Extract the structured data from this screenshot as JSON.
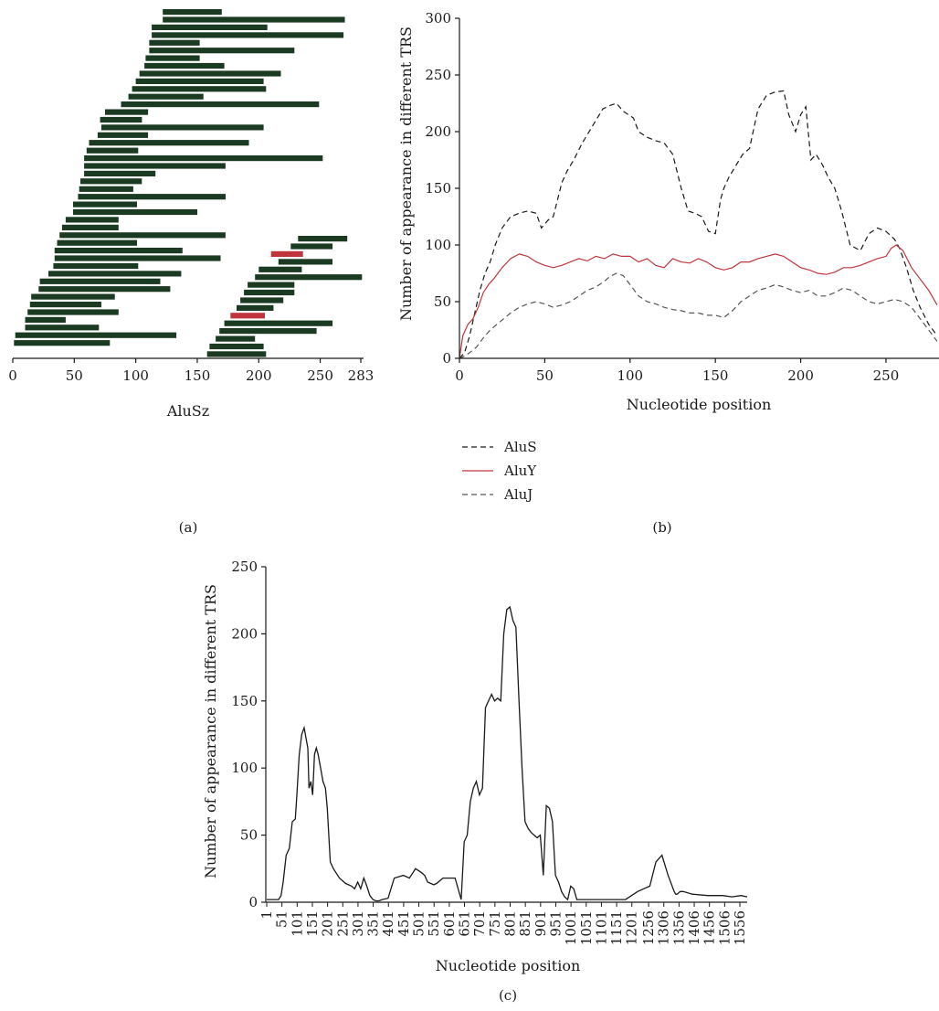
{
  "figure": {
    "panel_labels": [
      "(a)",
      "(b)",
      "(c)"
    ]
  },
  "colors": {
    "bar": "#1b3a22",
    "bar_highlight": "#c0353c",
    "aluS": "#1a1a1a",
    "aluY": "#c0353c",
    "aluJ": "#555555",
    "axis": "#1a1a1a"
  },
  "chart_data": [
    {
      "type": "bar",
      "panel": "(a)",
      "xlabel": "AluSz",
      "ylabel": "",
      "xlim": [
        0,
        283
      ],
      "x_ticks": [
        "0",
        "50",
        "100",
        "150",
        "200",
        "250",
        "283"
      ],
      "grid": false,
      "segments": [
        {
          "start": 122,
          "end": 170,
          "color": "dark"
        },
        {
          "start": 122,
          "end": 270,
          "color": "dark"
        },
        {
          "start": 113,
          "end": 207,
          "color": "dark"
        },
        {
          "start": 113,
          "end": 269,
          "color": "dark"
        },
        {
          "start": 111,
          "end": 152,
          "color": "dark"
        },
        {
          "start": 111,
          "end": 229,
          "color": "dark"
        },
        {
          "start": 108,
          "end": 152,
          "color": "dark"
        },
        {
          "start": 107,
          "end": 172,
          "color": "dark"
        },
        {
          "start": 103,
          "end": 218,
          "color": "dark"
        },
        {
          "start": 100,
          "end": 204,
          "color": "dark"
        },
        {
          "start": 97,
          "end": 206,
          "color": "dark"
        },
        {
          "start": 94,
          "end": 155,
          "color": "dark"
        },
        {
          "start": 88,
          "end": 249,
          "color": "dark"
        },
        {
          "start": 75,
          "end": 110,
          "color": "dark"
        },
        {
          "start": 71,
          "end": 105,
          "color": "dark"
        },
        {
          "start": 72,
          "end": 204,
          "color": "dark"
        },
        {
          "start": 69,
          "end": 110,
          "color": "dark"
        },
        {
          "start": 62,
          "end": 192,
          "color": "dark"
        },
        {
          "start": 60,
          "end": 102,
          "color": "dark"
        },
        {
          "start": 58,
          "end": 252,
          "color": "dark"
        },
        {
          "start": 58,
          "end": 173,
          "color": "dark"
        },
        {
          "start": 58,
          "end": 116,
          "color": "dark"
        },
        {
          "start": 55,
          "end": 105,
          "color": "dark"
        },
        {
          "start": 54,
          "end": 98,
          "color": "dark"
        },
        {
          "start": 53,
          "end": 173,
          "color": "dark"
        },
        {
          "start": 49,
          "end": 101,
          "color": "dark"
        },
        {
          "start": 49,
          "end": 150,
          "color": "dark"
        },
        {
          "start": 43,
          "end": 86,
          "color": "dark"
        },
        {
          "start": 40,
          "end": 86,
          "color": "dark"
        },
        {
          "start": 38,
          "end": 173,
          "color": "dark"
        },
        {
          "start": 36,
          "end": 101,
          "color": "dark"
        },
        {
          "start": 34,
          "end": 138,
          "color": "dark"
        },
        {
          "start": 34,
          "end": 169,
          "color": "dark"
        },
        {
          "start": 33,
          "end": 102,
          "color": "dark"
        },
        {
          "start": 29,
          "end": 137,
          "color": "dark"
        },
        {
          "start": 22,
          "end": 120,
          "color": "dark"
        },
        {
          "start": 21,
          "end": 128,
          "color": "dark"
        },
        {
          "start": 15,
          "end": 83,
          "color": "dark"
        },
        {
          "start": 14,
          "end": 72,
          "color": "dark"
        },
        {
          "start": 12,
          "end": 86,
          "color": "dark"
        },
        {
          "start": 10,
          "end": 43,
          "color": "dark"
        },
        {
          "start": 10,
          "end": 70,
          "color": "dark"
        },
        {
          "start": 2,
          "end": 133,
          "color": "dark"
        },
        {
          "start": 1,
          "end": 79,
          "color": "dark"
        },
        {
          "start": 232,
          "end": 272,
          "color": "dark"
        },
        {
          "start": 226,
          "end": 260,
          "color": "dark"
        },
        {
          "start": 210,
          "end": 236,
          "color": "red"
        },
        {
          "start": 216,
          "end": 260,
          "color": "dark"
        },
        {
          "start": 200,
          "end": 235,
          "color": "dark"
        },
        {
          "start": 197,
          "end": 284,
          "color": "dark"
        },
        {
          "start": 191,
          "end": 229,
          "color": "dark"
        },
        {
          "start": 188,
          "end": 229,
          "color": "dark"
        },
        {
          "start": 185,
          "end": 220,
          "color": "dark"
        },
        {
          "start": 182,
          "end": 212,
          "color": "dark"
        },
        {
          "start": 177,
          "end": 205,
          "color": "red"
        },
        {
          "start": 172,
          "end": 260,
          "color": "dark"
        },
        {
          "start": 168,
          "end": 247,
          "color": "dark"
        },
        {
          "start": 165,
          "end": 197,
          "color": "dark"
        },
        {
          "start": 160,
          "end": 204,
          "color": "dark"
        },
        {
          "start": 158,
          "end": 206,
          "color": "dark"
        }
      ]
    },
    {
      "type": "line",
      "panel": "(b)",
      "xlabel": "Nucleotide position",
      "ylabel": "Number of appearance in different TRS",
      "xlim": [
        0,
        280
      ],
      "ylim": [
        0,
        300
      ],
      "x_ticks": [
        "0",
        "50",
        "100",
        "150",
        "200",
        "250"
      ],
      "y_ticks": [
        "0",
        "50",
        "100",
        "150",
        "200",
        "250",
        "300"
      ],
      "grid": false,
      "legend_position": "bottom",
      "series": [
        {
          "name": "AluS",
          "style": "dashed",
          "x": [
            0,
            3,
            6,
            9,
            12,
            15,
            18,
            21,
            25,
            30,
            35,
            40,
            45,
            48,
            52,
            55,
            60,
            63,
            67,
            72,
            78,
            84,
            88,
            92,
            96,
            102,
            105,
            110,
            115,
            120,
            125,
            130,
            134,
            138,
            142,
            146,
            150,
            153,
            155,
            158,
            162,
            166,
            170,
            175,
            180,
            185,
            190,
            193,
            197,
            200,
            203,
            206,
            209,
            213,
            216,
            220,
            224,
            229,
            235,
            240,
            245,
            250,
            255,
            258,
            262,
            266,
            270,
            275,
            280
          ],
          "y": [
            0,
            5,
            20,
            40,
            60,
            75,
            85,
            100,
            115,
            125,
            128,
            130,
            128,
            115,
            122,
            125,
            155,
            165,
            175,
            190,
            205,
            220,
            223,
            225,
            218,
            212,
            200,
            195,
            192,
            190,
            180,
            150,
            130,
            128,
            125,
            112,
            110,
            140,
            150,
            160,
            170,
            180,
            185,
            220,
            232,
            235,
            236,
            215,
            200,
            215,
            222,
            175,
            180,
            170,
            160,
            150,
            130,
            100,
            95,
            110,
            115,
            112,
            105,
            97,
            80,
            60,
            45,
            30,
            20
          ]
        },
        {
          "name": "AluY",
          "style": "solid",
          "x": [
            0,
            2,
            5,
            8,
            11,
            14,
            17,
            20,
            25,
            30,
            35,
            40,
            45,
            50,
            55,
            60,
            65,
            70,
            75,
            80,
            85,
            90,
            95,
            100,
            105,
            110,
            115,
            120,
            125,
            130,
            135,
            140,
            145,
            150,
            155,
            160,
            165,
            170,
            175,
            180,
            185,
            190,
            195,
            200,
            205,
            210,
            215,
            220,
            225,
            230,
            235,
            240,
            245,
            250,
            253,
            256,
            260,
            265,
            270,
            275,
            280
          ],
          "y": [
            0,
            20,
            30,
            35,
            45,
            58,
            65,
            70,
            80,
            88,
            92,
            90,
            85,
            82,
            80,
            82,
            85,
            88,
            86,
            90,
            88,
            92,
            90,
            90,
            85,
            88,
            82,
            80,
            88,
            85,
            84,
            88,
            85,
            80,
            78,
            80,
            85,
            85,
            88,
            90,
            92,
            90,
            85,
            80,
            78,
            75,
            74,
            76,
            80,
            80,
            82,
            85,
            88,
            90,
            97,
            100,
            95,
            80,
            70,
            60,
            47
          ]
        },
        {
          "name": "AluJ",
          "style": "dashed",
          "x": [
            0,
            3,
            6,
            10,
            14,
            18,
            22,
            26,
            30,
            35,
            40,
            45,
            50,
            55,
            60,
            65,
            70,
            75,
            80,
            85,
            88,
            92,
            96,
            100,
            105,
            110,
            115,
            120,
            125,
            130,
            135,
            140,
            145,
            150,
            155,
            160,
            165,
            170,
            175,
            180,
            185,
            190,
            195,
            200,
            205,
            210,
            215,
            220,
            225,
            230,
            235,
            240,
            245,
            250,
            255,
            260,
            265,
            270,
            275,
            280
          ],
          "y": [
            0,
            2,
            5,
            10,
            18,
            25,
            30,
            35,
            40,
            45,
            48,
            50,
            48,
            45,
            47,
            50,
            55,
            60,
            63,
            68,
            72,
            75,
            73,
            65,
            55,
            50,
            48,
            45,
            43,
            42,
            40,
            40,
            38,
            38,
            36,
            42,
            50,
            55,
            60,
            62,
            65,
            63,
            60,
            58,
            60,
            55,
            55,
            58,
            62,
            60,
            55,
            50,
            48,
            50,
            52,
            50,
            45,
            35,
            25,
            15
          ]
        }
      ]
    },
    {
      "type": "line",
      "panel": "(c)",
      "xlabel": "Nucleotide position",
      "ylabel": "Number of appearance in different TRS",
      "xlim": [
        1,
        1580
      ],
      "ylim": [
        0,
        250
      ],
      "x_ticks": [
        "1",
        "51",
        "101",
        "151",
        "201",
        "251",
        "301",
        "351",
        "401",
        "451",
        "501",
        "551",
        "601",
        "651",
        "701",
        "751",
        "801",
        "851",
        "901",
        "951",
        "1001",
        "1051",
        "1101",
        "1151",
        "1201",
        "1256",
        "1306",
        "1356",
        "1406",
        "1456",
        "1506",
        "1556"
      ],
      "y_ticks": [
        "0",
        "50",
        "100",
        "150",
        "200",
        "250"
      ],
      "grid": false,
      "series": [
        {
          "name": "",
          "style": "solid",
          "x": [
            1,
            40,
            48,
            55,
            65,
            75,
            85,
            95,
            100,
            108,
            116,
            124,
            132,
            136,
            140,
            146,
            152,
            158,
            164,
            170,
            178,
            186,
            194,
            200,
            210,
            220,
            240,
            260,
            280,
            290,
            300,
            310,
            320,
            330,
            340,
            350,
            360,
            370,
            380,
            400,
            420,
            450,
            470,
            490,
            510,
            520,
            530,
            550,
            560,
            580,
            590,
            600,
            620,
            640,
            650,
            660,
            670,
            680,
            690,
            700,
            710,
            720,
            730,
            740,
            750,
            760,
            770,
            780,
            790,
            800,
            810,
            820,
            830,
            840,
            850,
            860,
            870,
            880,
            890,
            900,
            910,
            920,
            930,
            940,
            950,
            960,
            970,
            980,
            990,
            1000,
            1010,
            1020,
            1040,
            1060,
            1080,
            1100,
            1120,
            1140,
            1160,
            1180,
            1200,
            1220,
            1240,
            1260,
            1280,
            1300,
            1320,
            1340,
            1345,
            1350,
            1355,
            1360,
            1370,
            1400,
            1450,
            1480,
            1500,
            1530,
            1560,
            1580
          ],
          "y": [
            2,
            2,
            5,
            15,
            35,
            40,
            60,
            62,
            80,
            110,
            125,
            130,
            120,
            115,
            85,
            90,
            80,
            110,
            115,
            110,
            100,
            90,
            85,
            70,
            30,
            25,
            18,
            14,
            12,
            10,
            15,
            10,
            18,
            12,
            5,
            2,
            1,
            1,
            2,
            3,
            18,
            20,
            18,
            25,
            22,
            20,
            15,
            13,
            14,
            18,
            18,
            18,
            18,
            2,
            45,
            50,
            75,
            85,
            90,
            80,
            85,
            145,
            150,
            155,
            150,
            152,
            150,
            200,
            218,
            220,
            210,
            205,
            150,
            100,
            60,
            55,
            52,
            50,
            48,
            50,
            20,
            72,
            70,
            60,
            20,
            15,
            8,
            4,
            2,
            12,
            10,
            2,
            2,
            2,
            2,
            2,
            2,
            2,
            2,
            2,
            5,
            8,
            10,
            12,
            30,
            35,
            20,
            8,
            6,
            6,
            7,
            8,
            8,
            6,
            5,
            5,
            5,
            4,
            5,
            4
          ]
        }
      ]
    }
  ]
}
